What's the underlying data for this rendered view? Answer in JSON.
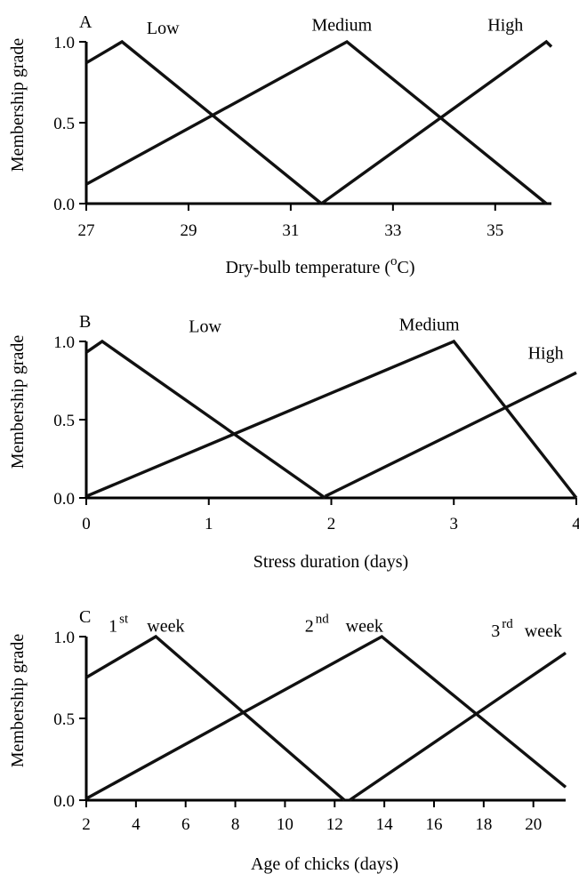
{
  "chart_data": [
    {
      "type": "line",
      "panel_label": "A",
      "xlabel_prefix": "Dry-bulb temperature (",
      "xlabel_degree": "o",
      "xlabel_suffix": "C)",
      "ylabel": "Membership grade",
      "xlim": [
        27,
        36.1
      ],
      "ylim": [
        0,
        1
      ],
      "x_ticks": [
        27,
        29,
        31,
        33,
        35
      ],
      "y_ticks": [
        "0.0",
        "0.5",
        "1.0"
      ],
      "set_labels": [
        {
          "text": "Low",
          "x": 28.5,
          "y": 1.05
        },
        {
          "text": "Medium",
          "x": 32,
          "y": 1.07
        },
        {
          "text": "High",
          "x": 35.2,
          "y": 1.07
        }
      ],
      "series": [
        {
          "points": [
            [
              27,
              0.87
            ],
            [
              27.7,
              1.0
            ],
            [
              31.6,
              0.0
            ]
          ]
        },
        {
          "points": [
            [
              27,
              0.12
            ],
            [
              32.1,
              1.0
            ],
            [
              36.0,
              0.0
            ]
          ]
        },
        {
          "points": [
            [
              31.6,
              0.0
            ],
            [
              36.0,
              1.0
            ],
            [
              36.1,
              0.97
            ]
          ]
        }
      ]
    },
    {
      "type": "line",
      "panel_label": "B",
      "xlabel": "Stress duration (days)",
      "ylabel": "Membership grade",
      "xlim": [
        0,
        4
      ],
      "ylim": [
        0,
        1
      ],
      "x_ticks": [
        0,
        1,
        2,
        3,
        4
      ],
      "y_ticks": [
        "0.0",
        "0.5",
        "1.0"
      ],
      "set_labels": [
        {
          "text": "Low",
          "x": 0.97,
          "y": 1.06
        },
        {
          "text": "Medium",
          "x": 2.8,
          "y": 1.07
        },
        {
          "text": "High",
          "x": 3.75,
          "y": 0.89
        }
      ],
      "series": [
        {
          "points": [
            [
              0,
              0.93
            ],
            [
              0.13,
              1.0
            ],
            [
              1.95,
              0.0
            ]
          ]
        },
        {
          "points": [
            [
              0,
              0.01
            ],
            [
              3.0,
              1.0
            ],
            [
              4.0,
              0.0
            ]
          ]
        },
        {
          "points": [
            [
              1.95,
              0.01
            ],
            [
              4.0,
              0.8
            ]
          ]
        }
      ]
    },
    {
      "type": "line",
      "panel_label": "C",
      "xlabel": "Age of chicks (days)",
      "ylabel": "Membership grade",
      "xlim": [
        2,
        21.3
      ],
      "ylim": [
        0,
        1
      ],
      "x_ticks": [
        2,
        4,
        6,
        8,
        10,
        12,
        14,
        16,
        18,
        20
      ],
      "y_ticks": [
        "0.0",
        "0.5",
        "1.0"
      ],
      "set_labels": [
        {
          "ordinal": "1",
          "suffix": "st",
          "word": "week",
          "x": 2.9,
          "x_word": 5.2,
          "y": 1.03
        },
        {
          "ordinal": "2",
          "suffix": "nd",
          "word": "week",
          "x": 10.8,
          "x_word": 13.2,
          "y": 1.03
        },
        {
          "ordinal": "3",
          "suffix": "rd",
          "word": "week",
          "x": 18.3,
          "x_word": 20.4,
          "y": 1.0
        }
      ],
      "series": [
        {
          "points": [
            [
              2,
              0.75
            ],
            [
              4.8,
              1.0
            ],
            [
              12.4,
              0.0
            ]
          ]
        },
        {
          "points": [
            [
              2,
              0.01
            ],
            [
              13.9,
              1.0
            ],
            [
              21.3,
              0.08
            ]
          ]
        },
        {
          "points": [
            [
              12.6,
              0.0
            ],
            [
              21.3,
              0.9
            ]
          ]
        }
      ]
    }
  ]
}
